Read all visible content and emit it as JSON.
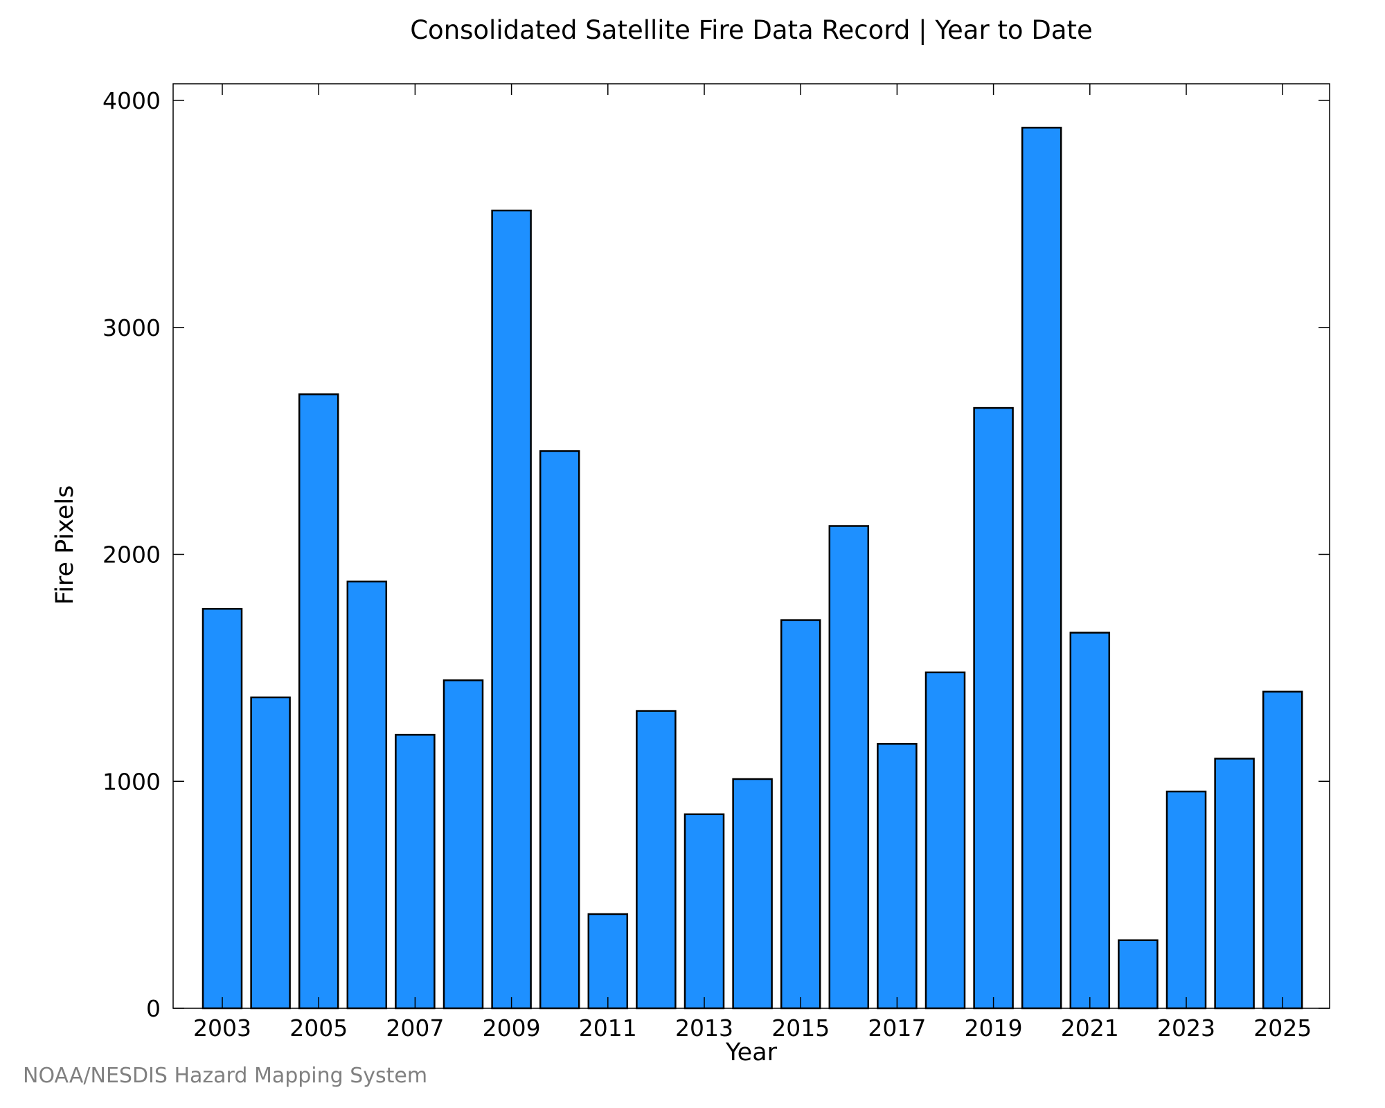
{
  "chart_data": {
    "type": "bar",
    "title": "Consolidated Satellite Fire Data Record | Year to Date",
    "xlabel": "Year",
    "ylabel": "Fire Pixels",
    "categories": [
      "2003",
      "2004",
      "2005",
      "2006",
      "2007",
      "2008",
      "2009",
      "2010",
      "2011",
      "2012",
      "2013",
      "2014",
      "2015",
      "2016",
      "2017",
      "2018",
      "2019",
      "2020",
      "2021",
      "2022",
      "2023",
      "2024",
      "2025"
    ],
    "values": [
      1760,
      1370,
      2705,
      1880,
      1205,
      1445,
      3515,
      2455,
      415,
      1310,
      855,
      1010,
      1710,
      2125,
      1165,
      1480,
      2645,
      3880,
      1655,
      300,
      955,
      1100,
      1395
    ],
    "x_tick_labels": [
      "2003",
      "2005",
      "2007",
      "2009",
      "2011",
      "2013",
      "2015",
      "2017",
      "2019",
      "2021",
      "2023",
      "2025"
    ],
    "y_tick_labels": [
      "0",
      "1000",
      "2000",
      "3000",
      "4000"
    ],
    "ylim": [
      0,
      4000
    ],
    "bar_color": "#1e90ff",
    "grid": false,
    "legend": "none"
  },
  "footer": {
    "credit": "NOAA/NESDIS Hazard Mapping System"
  }
}
